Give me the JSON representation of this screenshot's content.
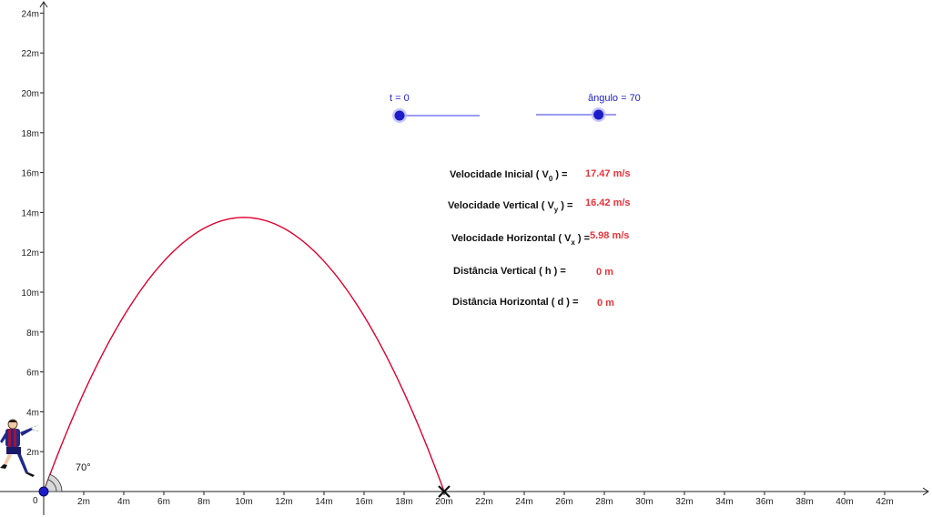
{
  "axes": {
    "x_unit": "m",
    "y_unit": "m",
    "origin_label": "0",
    "x_ticks": [
      2,
      4,
      6,
      8,
      10,
      12,
      14,
      16,
      18,
      20,
      22,
      24,
      26,
      28,
      30,
      32,
      34,
      36,
      38,
      40,
      42
    ],
    "y_ticks": [
      2,
      4,
      6,
      8,
      10,
      12,
      14,
      16,
      18,
      20,
      22,
      24
    ],
    "x_range": [
      0,
      44.5
    ],
    "y_range": [
      0,
      24.5
    ]
  },
  "sliders": {
    "t": {
      "label": "t = 0",
      "value": 0,
      "level": 0.0,
      "accent": "#1c1cc8"
    },
    "angle": {
      "label": "ângulo = 70",
      "value": 70,
      "level": 0.78,
      "accent": "#1c1cc8"
    }
  },
  "info": {
    "v0": {
      "label": "Velocidade Inicial ( V",
      "sub": "0",
      "suffix": " ) =",
      "value": "17.47 m/s"
    },
    "vy": {
      "label": "Velocidade Vertical ( V",
      "sub": "y",
      "suffix": " ) =",
      "value": "16.42 m/s"
    },
    "vx": {
      "label": "Velocidade Horizontal ( V",
      "sub": "x",
      "suffix": " ) =",
      "value": "5.98 m/s"
    },
    "h": {
      "label": "Distância Vertical ( h ) =",
      "value": "0 m"
    },
    "d": {
      "label": "Distância Horizontal ( d ) =",
      "value": "0 m"
    }
  },
  "angle_label": "70°",
  "trajectory": {
    "range_m": 20,
    "max_height_m": 13.75,
    "landing_marker": "x-mark-icon",
    "color": "#e00030"
  },
  "player_icon": "soccer-player-icon",
  "ball_icon": "ball-icon"
}
